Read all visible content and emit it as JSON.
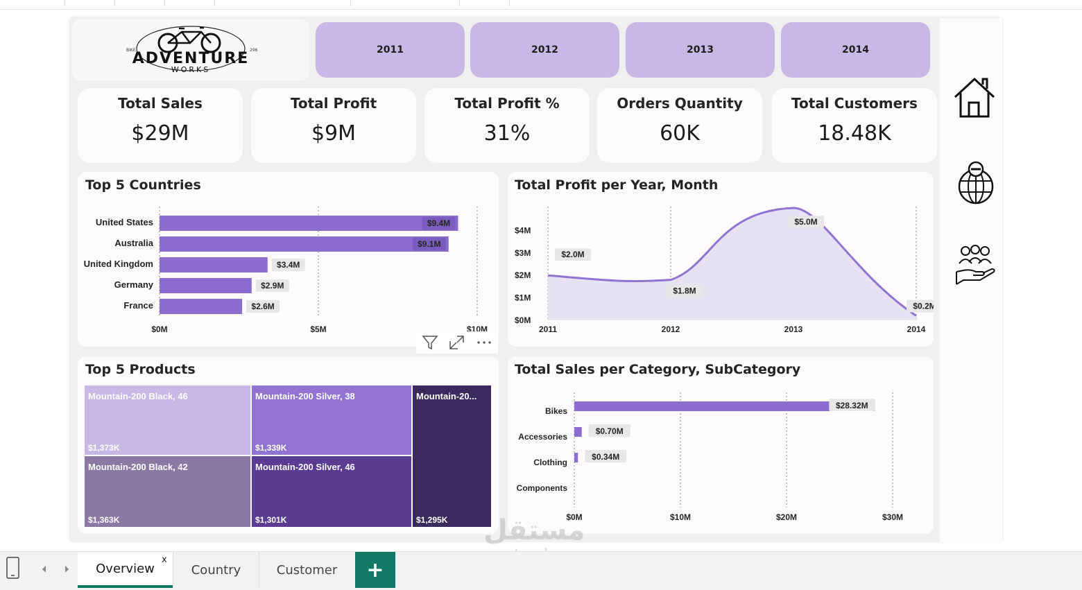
{
  "years": [
    "2011",
    "2012",
    "2013",
    "2014"
  ],
  "logo": {
    "brand": "ADVENTURE",
    "sub": "WORKS",
    "left_text": "BIKE",
    "right_text": "296"
  },
  "kpis": [
    {
      "title": "Total Sales",
      "value": "$29M"
    },
    {
      "title": "Total Profit",
      "value": "$9M"
    },
    {
      "title": "Total Profit %",
      "value": "31%"
    },
    {
      "title": "Orders Quantity",
      "value": "60K"
    },
    {
      "title": "Total Customers",
      "value": "18.48K"
    }
  ],
  "panels": {
    "countries": "Top 5 Countries",
    "profit": "Total Profit per Year, Month",
    "products": "Top 5 Products",
    "category": "Total Sales per Category, SubCategory"
  },
  "chart_data": [
    {
      "type": "bar",
      "title": "Top 5 Countries",
      "orientation": "horizontal",
      "categories": [
        "United States",
        "Australia",
        "United Kingdom",
        "Germany",
        "France"
      ],
      "values": [
        9.4,
        9.1,
        3.4,
        2.9,
        2.6
      ],
      "labels": [
        "$9.4M",
        "$9.1M",
        "$3.4M",
        "$2.9M",
        "$2.6M"
      ],
      "xlim": [
        0,
        10
      ],
      "ticks": [
        "$0M",
        "$5M",
        "$10M"
      ],
      "color": "#8c6ccf"
    },
    {
      "type": "area",
      "title": "Total Profit per Year, Month",
      "x": [
        "2011",
        "2012",
        "2013",
        "2014"
      ],
      "values": [
        2.0,
        1.8,
        5.0,
        0.2
      ],
      "labels": [
        "$2.0M",
        "$1.8M",
        "$5.0M",
        "$0.2M"
      ],
      "ylim": [
        0,
        5
      ],
      "yticks": [
        "$0M",
        "$1M",
        "$2M",
        "$3M",
        "$4M"
      ],
      "color": "#9173d2"
    },
    {
      "type": "treemap",
      "title": "Top 5 Products",
      "items": [
        {
          "name": "Mountain-200 Black, 46",
          "value": "$1,373K",
          "color": "#c8b8e6"
        },
        {
          "name": "Mountain-200 Silver, 38",
          "value": "$1,339K",
          "color": "#9173d2"
        },
        {
          "name": "Mountain-20...",
          "value": "$1,295K",
          "color": "#3b2a5e"
        },
        {
          "name": "Mountain-200 Black, 42",
          "value": "$1,363K",
          "color": "#8b78a3"
        },
        {
          "name": "Mountain-200 Silver, 46",
          "value": "$1,301K",
          "color": "#5a3d92"
        }
      ]
    },
    {
      "type": "bar",
      "title": "Total Sales per Category, SubCategory",
      "orientation": "horizontal",
      "categories": [
        "Bikes",
        "Accessories",
        "Clothing",
        "Components"
      ],
      "values": [
        28.32,
        0.7,
        0.34,
        0
      ],
      "labels": [
        "$28.32M",
        "$0.70M",
        "$0.34M",
        ""
      ],
      "xlim": [
        0,
        30
      ],
      "ticks": [
        "$0M",
        "$10M",
        "$20M",
        "$30M"
      ],
      "color": "#8c6ccf"
    }
  ],
  "tabs": [
    {
      "label": "Overview",
      "close": "x"
    },
    {
      "label": "Country"
    },
    {
      "label": "Customer"
    }
  ],
  "add_tab": "+",
  "watermark": {
    "arabic": "مستقل",
    "site": "mostaql.com"
  },
  "icons": [
    "home-icon",
    "globe-icon",
    "customers-icon",
    "filter-icon",
    "focus-mode-icon",
    "more-options-icon",
    "phone-layout-icon"
  ]
}
